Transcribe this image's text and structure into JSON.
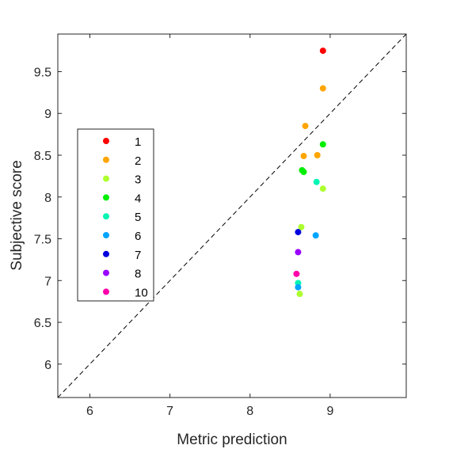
{
  "chart_data": {
    "type": "scatter",
    "xlabel": "Metric prediction",
    "ylabel": "Subjective score",
    "xlim": [
      5.6,
      9.95
    ],
    "ylim": [
      5.6,
      9.95
    ],
    "xticks": [
      6,
      7,
      8,
      9
    ],
    "yticks": [
      6,
      6.5,
      7,
      7.5,
      8,
      8.5,
      9,
      9.5
    ],
    "xtick_labels": [
      "6",
      "7",
      "8",
      "9"
    ],
    "ytick_labels": [
      "6",
      "6.5",
      "7",
      "7.5",
      "8",
      "8.5",
      "9",
      "9.5"
    ],
    "reference_line": "y = x (dashed)",
    "grid": false,
    "legend_position": "left",
    "series": [
      {
        "name": "1",
        "color": "#ff0000",
        "points": [
          [
            8.91,
            9.75
          ]
        ]
      },
      {
        "name": "2",
        "color": "#ffa500",
        "points": [
          [
            8.91,
            9.3
          ],
          [
            8.69,
            8.85
          ],
          [
            8.67,
            8.49
          ],
          [
            8.84,
            8.5
          ]
        ]
      },
      {
        "name": "3",
        "color": "#adff2f",
        "points": [
          [
            8.91,
            8.1
          ],
          [
            8.64,
            7.64
          ],
          [
            8.62,
            6.84
          ]
        ]
      },
      {
        "name": "4",
        "color": "#00ee00",
        "points": [
          [
            8.91,
            8.63
          ],
          [
            8.65,
            8.32
          ],
          [
            8.67,
            8.3
          ]
        ]
      },
      {
        "name": "5",
        "color": "#00f5b4",
        "points": [
          [
            8.83,
            8.18
          ],
          [
            8.6,
            6.97
          ]
        ]
      },
      {
        "name": "6",
        "color": "#00a5ff",
        "points": [
          [
            8.82,
            7.54
          ],
          [
            8.6,
            6.92
          ]
        ]
      },
      {
        "name": "7",
        "color": "#0000dd",
        "points": [
          [
            8.6,
            7.58
          ]
        ]
      },
      {
        "name": "8",
        "color": "#9900ff",
        "points": [
          [
            8.6,
            7.34
          ]
        ]
      },
      {
        "name": "10",
        "color": "#ff00aa",
        "points": [
          [
            8.58,
            7.08
          ]
        ]
      }
    ]
  }
}
